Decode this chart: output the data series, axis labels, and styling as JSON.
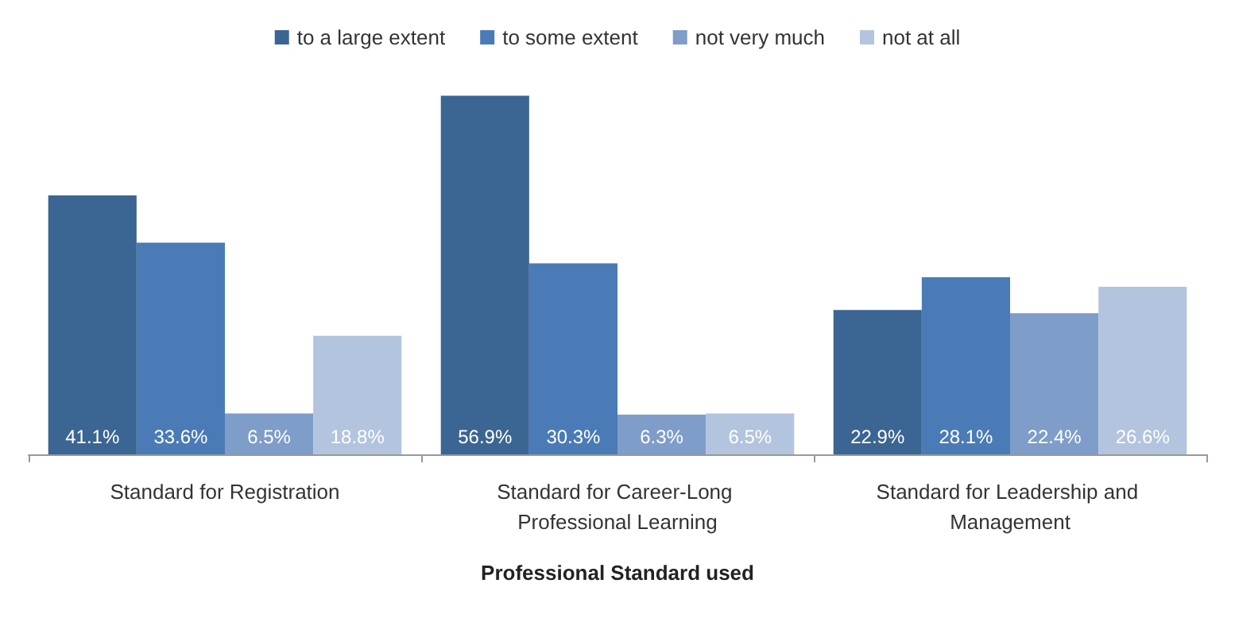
{
  "chart_data": {
    "type": "bar",
    "xlabel": "Professional Standard used",
    "categories": [
      "Standard for Registration",
      "Standard for Career-Long Professional Learning",
      "Standard for Leadership and Management"
    ],
    "series": [
      {
        "name": "to a large extent",
        "color": "#3b6592",
        "values": [
          41.1,
          56.9,
          22.9
        ],
        "value_labels": [
          "41.1%",
          "56.9%",
          "22.9%"
        ]
      },
      {
        "name": "to some extent",
        "color": "#4a7bb6",
        "values": [
          33.6,
          30.3,
          28.1
        ],
        "value_labels": [
          "33.6%",
          "30.3%",
          "28.1%"
        ]
      },
      {
        "name": "not very much",
        "color": "#7e9dc8",
        "values": [
          6.5,
          6.3,
          22.4
        ],
        "value_labels": [
          "6.5%",
          "6.3%",
          "22.4%"
        ]
      },
      {
        "name": "not at all",
        "color": "#b3c4df",
        "values": [
          18.8,
          6.5,
          26.6
        ],
        "value_labels": [
          "18.8%",
          "6.5%",
          "26.6%"
        ]
      }
    ],
    "legend": "top"
  }
}
